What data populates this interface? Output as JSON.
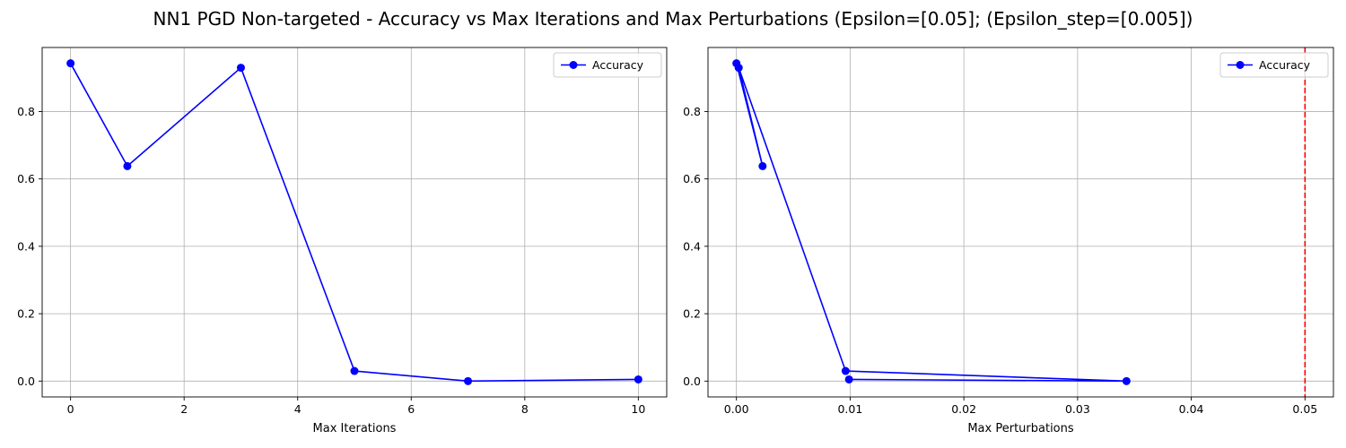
{
  "figure": {
    "title": "NN1 PGD Non-targeted - Accuracy vs Max Iterations and Max Perturbations (Epsilon=[0.05]; (Epsilon_step=[0.005])"
  },
  "chart_data": [
    {
      "type": "line",
      "xlabel": "Max Iterations",
      "ylabel": "",
      "xlim": [
        -0.5,
        10.5
      ],
      "ylim": [
        -0.047,
        0.99
      ],
      "xticks": [
        0,
        2,
        4,
        6,
        8,
        10
      ],
      "xtick_labels": [
        "0",
        "2",
        "4",
        "6",
        "8",
        "10"
      ],
      "yticks": [
        0.0,
        0.2,
        0.4,
        0.6,
        0.8
      ],
      "ytick_labels": [
        "0.0",
        "0.2",
        "0.4",
        "0.6",
        "0.8"
      ],
      "grid": true,
      "legend_position": "top-right",
      "series": [
        {
          "name": "Accuracy",
          "color": "#0000ff",
          "marker": "circle",
          "x": [
            0,
            1,
            3,
            5,
            7,
            10
          ],
          "y": [
            0.943,
            0.638,
            0.93,
            0.03,
            0.0,
            0.005
          ]
        }
      ],
      "reference_lines": []
    },
    {
      "type": "line",
      "xlabel": "Max Perturbations",
      "ylabel": "",
      "xlim": [
        -0.0025,
        0.0525
      ],
      "ylim": [
        -0.047,
        0.99
      ],
      "xticks": [
        0.0,
        0.01,
        0.02,
        0.03,
        0.04,
        0.05
      ],
      "xtick_labels": [
        "0.00",
        "0.01",
        "0.02",
        "0.03",
        "0.04",
        "0.05"
      ],
      "yticks": [
        0.0,
        0.2,
        0.4,
        0.6,
        0.8
      ],
      "ytick_labels": [
        "0.0",
        "0.2",
        "0.4",
        "0.6",
        "0.8"
      ],
      "grid": true,
      "legend_position": "top-right",
      "series": [
        {
          "name": "Accuracy",
          "color": "#0000ff",
          "marker": "circle",
          "x": [
            0.0,
            0.0023,
            0.0002,
            0.0096,
            0.0343,
            0.0099
          ],
          "y": [
            0.943,
            0.638,
            0.93,
            0.03,
            0.0,
            0.005
          ]
        }
      ],
      "reference_lines": [
        {
          "axis": "x",
          "value": 0.05,
          "color": "#ff0000",
          "style": "dashed"
        }
      ]
    }
  ]
}
